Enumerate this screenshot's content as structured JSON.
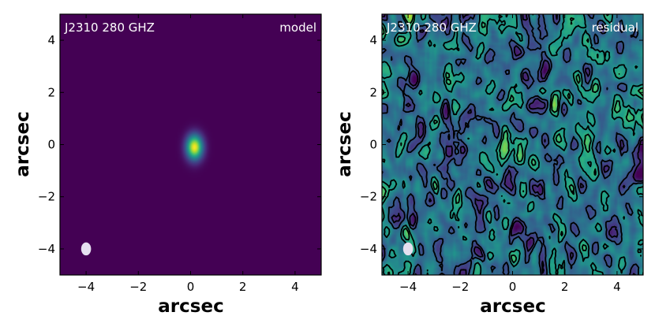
{
  "chart_data": [
    {
      "type": "heatmap",
      "panel": "model",
      "title_left": "J2310 280 GHZ",
      "title_right": "model",
      "xlabel": "arcsec",
      "ylabel": "arcsec",
      "xlim": [
        -5,
        5
      ],
      "ylim": [
        -5,
        5
      ],
      "xticks": [
        -4,
        -2,
        0,
        2,
        4
      ],
      "yticks": [
        -4,
        -2,
        0,
        2,
        4
      ],
      "xtick_labels": [
        "−4",
        "−2",
        "0",
        "2",
        "4"
      ],
      "ytick_labels": [
        "−4",
        "−2",
        "0",
        "2",
        "4"
      ],
      "colormap": "viridis",
      "background_color": "#440154",
      "source": {
        "x": 0.15,
        "y": -0.1,
        "sigma_x": 0.22,
        "sigma_y": 0.33,
        "peak": 1.0
      },
      "beam": {
        "x": -4.0,
        "y": -4.0,
        "major": 0.5,
        "minor": 0.38,
        "color": "#e6e0f0"
      }
    },
    {
      "type": "heatmap",
      "panel": "residual",
      "title_left": "J2310 280 GHZ",
      "title_right": "residual",
      "xlabel": "arcsec",
      "ylabel": "arcsec",
      "xlim": [
        -5,
        5
      ],
      "ylim": [
        -5,
        5
      ],
      "xticks": [
        -4,
        -2,
        0,
        2,
        4
      ],
      "yticks": [
        -4,
        -2,
        0,
        2,
        4
      ],
      "xtick_labels": [
        "−4",
        "−2",
        "0",
        "2",
        "4"
      ],
      "ytick_labels": [
        "−4",
        "−2",
        "0",
        "2",
        "4"
      ],
      "colormap": "viridis",
      "contours": {
        "positive_style": "solid",
        "negative_style": "dashed",
        "color": "#000000"
      },
      "peak": {
        "x": -0.3,
        "y": 0.0
      },
      "beam": {
        "x": -4.0,
        "y": -4.0,
        "major": 0.5,
        "minor": 0.38,
        "color": "#e6e0f0"
      }
    }
  ]
}
